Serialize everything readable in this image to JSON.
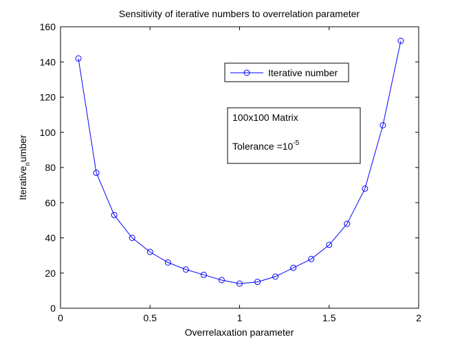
{
  "chart_data": {
    "type": "line",
    "title": "Sensitivity of iterative numbers to overrelation parameter",
    "xlabel": "Overrelaxation parameter",
    "ylabel": "Iterative_number",
    "ylabel_main": "Iterative",
    "ylabel_sub": "n",
    "ylabel_rest": "umber",
    "xlim": [
      0,
      2
    ],
    "ylim": [
      0,
      160
    ],
    "x_ticks": [
      0,
      0.5,
      1,
      1.5,
      2
    ],
    "x_tick_labels": [
      "0",
      "0.5",
      "1",
      "1.5",
      "2"
    ],
    "y_ticks": [
      0,
      20,
      40,
      60,
      80,
      100,
      120,
      140,
      160
    ],
    "y_tick_labels": [
      "0",
      "20",
      "40",
      "60",
      "80",
      "100",
      "120",
      "140",
      "160"
    ],
    "grid": false,
    "legend_position": "top-right",
    "series": [
      {
        "name": "Iterative number",
        "color": "#0000ff",
        "marker": "circle",
        "x": [
          0.1,
          0.2,
          0.3,
          0.4,
          0.5,
          0.6,
          0.7,
          0.8,
          0.9,
          1.0,
          1.1,
          1.2,
          1.3,
          1.4,
          1.5,
          1.6,
          1.7,
          1.8,
          1.9
        ],
        "y": [
          142,
          77,
          53,
          40,
          32,
          26,
          22,
          19,
          16,
          14,
          15,
          18,
          23,
          28,
          36,
          48,
          68,
          104,
          152
        ]
      }
    ],
    "annotation": {
      "line1": "100x100 Matrix",
      "line2_prefix": "Tolerance =10",
      "line2_exponent": "-5"
    }
  }
}
